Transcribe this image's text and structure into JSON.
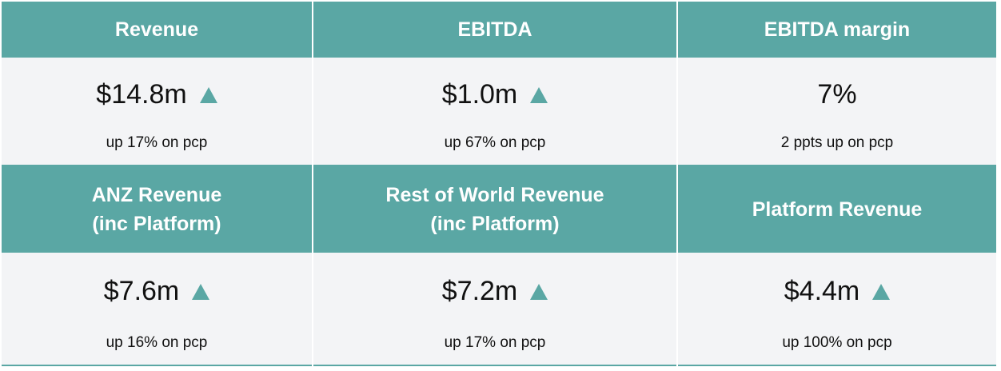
{
  "metrics": [
    {
      "title": "Revenue",
      "value": "$14.8m",
      "trend": "up",
      "change": "up 17% on pcp"
    },
    {
      "title": "EBITDA",
      "value": "$1.0m",
      "trend": "up",
      "change": "up 67% on pcp"
    },
    {
      "title": "EBITDA margin",
      "value": "7%",
      "trend": "",
      "change": "2 ppts up on pcp"
    },
    {
      "title": "ANZ Revenue\n(inc Platform)",
      "value": "$7.6m",
      "trend": "up",
      "change": "up 16% on pcp"
    },
    {
      "title": "Rest of World Revenue\n(inc Platform)",
      "value": "$7.2m",
      "trend": "up",
      "change": "up 17% on pcp"
    },
    {
      "title": "Platform Revenue",
      "value": "$4.4m",
      "trend": "up",
      "change": "up 100% on pcp"
    }
  ],
  "colors": {
    "header_bg": "#5aa7a4",
    "cell_bg": "#f3f4f6",
    "arrow": "#5aa7a4"
  },
  "icons": {
    "trend_up": "triangle-up-icon"
  }
}
